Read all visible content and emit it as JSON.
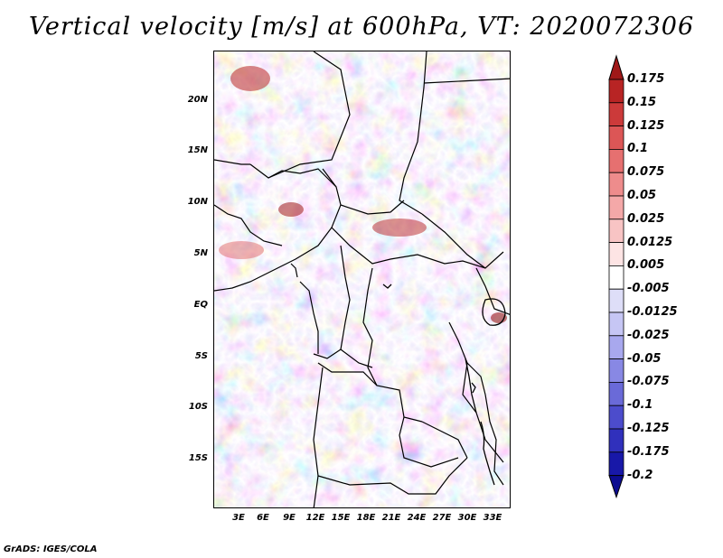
{
  "title": "Vertical velocity [m/s] at 600hPa, VT: 2020072306",
  "credit": "GrADS: IGES/COLA",
  "map": {
    "lat_labels": [
      "20N",
      "15N",
      "10N",
      "5N",
      "EQ",
      "5S",
      "10S",
      "15S"
    ],
    "lon_labels": [
      "3E",
      "6E",
      "9E",
      "12E",
      "15E",
      "18E",
      "21E",
      "24E",
      "27E",
      "30E",
      "33E"
    ]
  },
  "colorbar": {
    "labels": [
      "0.175",
      "0.15",
      "0.125",
      "0.1",
      "0.075",
      "0.05",
      "0.025",
      "0.0125",
      "0.005",
      "-0.005",
      "-0.0125",
      "-0.025",
      "-0.05",
      "-0.075",
      "-0.1",
      "-0.125",
      "-0.175",
      "-0.2"
    ],
    "colors": [
      "#a01818",
      "#b82424",
      "#cc3a3a",
      "#dc5656",
      "#e67070",
      "#ee8c8c",
      "#f4a8a8",
      "#f8c4c4",
      "#fde4e4",
      "#ffffff",
      "#dedef8",
      "#c6c6f4",
      "#a8a8ee",
      "#8888e4",
      "#6a6ad8",
      "#4c4ccc",
      "#3030bc",
      "#1818a8",
      "#0c0c90"
    ]
  }
}
